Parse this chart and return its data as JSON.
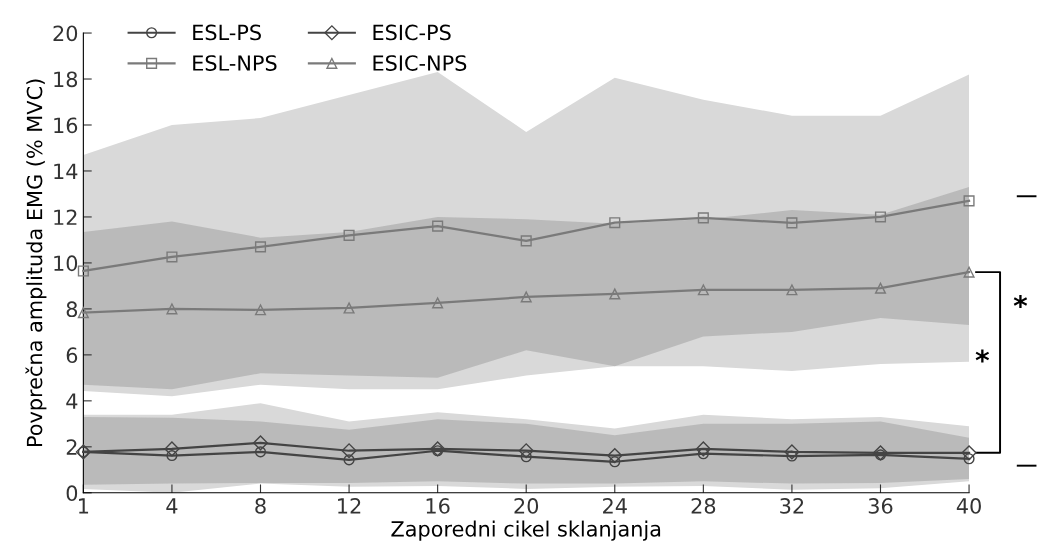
{
  "chart_data": {
    "type": "line",
    "xlabel": "Zaporedni cikel sklanjanja",
    "ylabel": "Povprečna amplituda EMG (% MVC)",
    "categories": [
      "1",
      "4",
      "8",
      "12",
      "16",
      "20",
      "24",
      "28",
      "32",
      "36",
      "40"
    ],
    "ylim": [
      0,
      20
    ],
    "yticks": [
      0,
      2,
      4,
      6,
      8,
      10,
      12,
      14,
      16,
      18,
      20
    ],
    "grid": false,
    "legend": "top left",
    "series": [
      {
        "name": "ESL-PS",
        "color": "#444444",
        "marker": "circle",
        "values": [
          1.78,
          1.62,
          1.78,
          1.43,
          1.83,
          1.57,
          1.35,
          1.7,
          1.6,
          1.65,
          1.48
        ],
        "lower": [
          0.17,
          0.0,
          0.4,
          0.26,
          0.3,
          0.17,
          0.26,
          0.3,
          0.13,
          0.2,
          0.5
        ],
        "upper": [
          3.4,
          3.4,
          3.9,
          3.1,
          3.5,
          3.2,
          2.8,
          3.4,
          3.2,
          3.3,
          2.9
        ]
      },
      {
        "name": "ESIC-PS",
        "color": "#444444",
        "marker": "diamond",
        "values": [
          1.78,
          1.91,
          2.17,
          1.83,
          1.91,
          1.83,
          1.62,
          1.91,
          1.78,
          1.74,
          1.74
        ],
        "lower": [
          0.35,
          0.4,
          0.43,
          0.43,
          0.5,
          0.4,
          0.4,
          0.5,
          0.4,
          0.43,
          0.6
        ],
        "upper": [
          3.3,
          3.26,
          3.1,
          2.74,
          3.2,
          3.0,
          2.5,
          3.0,
          3.0,
          3.1,
          2.4
        ]
      },
      {
        "name": "ESL-NPS",
        "color": "#7a7a7a",
        "marker": "square",
        "values": [
          9.65,
          10.26,
          10.7,
          11.2,
          11.6,
          10.96,
          11.75,
          11.96,
          11.74,
          12.0,
          12.7
        ],
        "lower": [
          4.43,
          4.2,
          4.7,
          4.5,
          4.5,
          5.1,
          5.5,
          5.5,
          5.3,
          5.6,
          5.7
        ],
        "upper": [
          14.7,
          16.0,
          16.3,
          17.3,
          18.3,
          15.7,
          18.05,
          17.1,
          16.4,
          16.4,
          18.2
        ]
      },
      {
        "name": "ESIC-NPS",
        "color": "#7a7a7a",
        "marker": "triangle",
        "values": [
          7.84,
          8.0,
          7.96,
          8.04,
          8.26,
          8.52,
          8.65,
          8.83,
          8.83,
          8.9,
          9.6
        ],
        "lower": [
          4.7,
          4.5,
          5.2,
          5.1,
          5.0,
          6.2,
          5.5,
          6.8,
          7.0,
          7.6,
          7.3
        ],
        "upper": [
          11.35,
          11.8,
          11.1,
          11.35,
          12.0,
          11.9,
          11.7,
          11.9,
          12.3,
          12.1,
          13.3
        ]
      }
    ],
    "annotations": [
      "*",
      "*"
    ]
  }
}
